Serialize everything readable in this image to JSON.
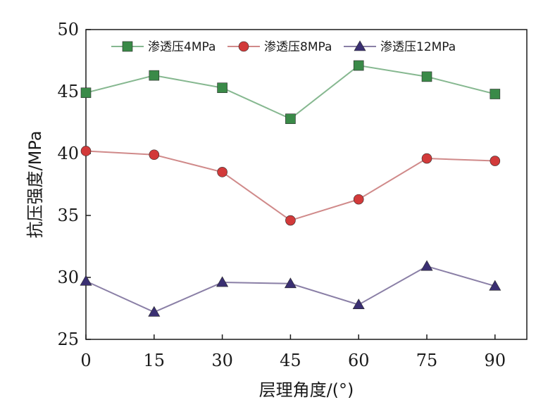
{
  "chart_data": {
    "type": "line",
    "title": "",
    "xlabel": "层理角度/(°)",
    "ylabel": "抗压强度/MPa",
    "x": [
      0,
      15,
      30,
      45,
      60,
      75,
      90
    ],
    "x_ticks": [
      "0",
      "15",
      "30",
      "45",
      "60",
      "75",
      "90"
    ],
    "y_ticks": [
      "25",
      "30",
      "35",
      "40",
      "45",
      "50"
    ],
    "xlim": [
      0,
      97
    ],
    "ylim": [
      25,
      50
    ],
    "grid": false,
    "legend_position": "top",
    "series": [
      {
        "name": "渗透压4MPa",
        "marker": "square",
        "color": "#3a8a48",
        "line_color": "#86b890",
        "values": [
          44.9,
          46.3,
          45.3,
          42.8,
          47.1,
          46.2,
          44.8
        ]
      },
      {
        "name": "渗透压8MPa",
        "marker": "circle",
        "color": "#d23a3a",
        "line_color": "#d08a8a",
        "values": [
          40.2,
          39.9,
          38.5,
          34.6,
          36.3,
          39.6,
          39.4
        ]
      },
      {
        "name": "渗透压12MPa",
        "marker": "triangle",
        "color": "#3a2f72",
        "line_color": "#8a7fa6",
        "values": [
          29.7,
          27.2,
          29.6,
          29.5,
          27.8,
          30.9,
          29.3
        ]
      }
    ]
  }
}
